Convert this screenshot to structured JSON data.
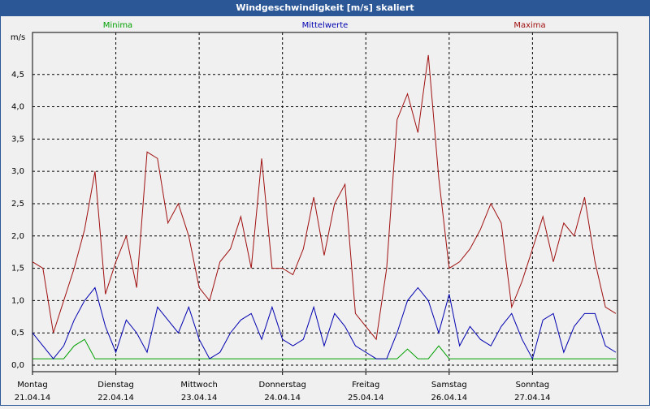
{
  "chart_data": {
    "type": "line",
    "title": "Windgeschwindigkeit [m/s] skaliert",
    "y_label": "m/s",
    "xlim": [
      0,
      7.02
    ],
    "ylim": [
      -0.1,
      5.15
    ],
    "yticks": [
      {
        "value": 0,
        "label": "0,0"
      },
      {
        "value": 0.5,
        "label": "0,5"
      },
      {
        "value": 1,
        "label": "1,0"
      },
      {
        "value": 1.5,
        "label": "1,5"
      },
      {
        "value": 2,
        "label": "2,0"
      },
      {
        "value": 2.5,
        "label": "2,5"
      },
      {
        "value": 3,
        "label": "3,0"
      },
      {
        "value": 3.5,
        "label": "3,5"
      },
      {
        "value": 4,
        "label": "4,0"
      },
      {
        "value": 4.5,
        "label": "4,5"
      }
    ],
    "xticks": [
      {
        "value": 0,
        "label": "Montag",
        "date": "21.04.14"
      },
      {
        "value": 1,
        "label": "Dienstag",
        "date": "22.04.14"
      },
      {
        "value": 2,
        "label": "Mittwoch",
        "date": "23.04.14"
      },
      {
        "value": 3,
        "label": "Donnerstag",
        "date": "24.04.14"
      },
      {
        "value": 4,
        "label": "Freitag",
        "date": "25.04.14"
      },
      {
        "value": 5,
        "label": "Samstag",
        "date": "26.04.14"
      },
      {
        "value": 6,
        "label": "Sonntag",
        "date": "27.04.14"
      }
    ],
    "grid": true,
    "x": [
      0,
      0.125,
      0.25,
      0.375,
      0.5,
      0.625,
      0.75,
      0.875,
      1,
      1.125,
      1.25,
      1.375,
      1.5,
      1.625,
      1.75,
      1.875,
      2,
      2.125,
      2.25,
      2.375,
      2.5,
      2.625,
      2.75,
      2.875,
      3,
      3.125,
      3.25,
      3.375,
      3.5,
      3.625,
      3.75,
      3.875,
      4,
      4.125,
      4.25,
      4.375,
      4.5,
      4.625,
      4.75,
      4.875,
      5,
      5.125,
      5.25,
      5.375,
      5.5,
      5.625,
      5.75,
      5.875,
      6,
      6.125,
      6.25,
      6.375,
      6.5,
      6.625,
      6.75,
      6.875,
      7
    ],
    "series": [
      {
        "name": "Minima",
        "color": "#00a000",
        "values": [
          0.1,
          0.1,
          0.1,
          0.1,
          0.3,
          0.4,
          0.1,
          0.1,
          0.1,
          0.1,
          0.1,
          0.1,
          0.1,
          0.1,
          0.1,
          0.1,
          0.1,
          0.1,
          0.1,
          0.1,
          0.1,
          0.1,
          0.1,
          0.1,
          0.1,
          0.1,
          0.1,
          0.1,
          0.1,
          0.1,
          0.1,
          0.1,
          0.1,
          0.1,
          0.1,
          0.1,
          0.25,
          0.1,
          0.1,
          0.3,
          0.1,
          0.1,
          0.1,
          0.1,
          0.1,
          0.1,
          0.1,
          0.1,
          0.1,
          0.1,
          0.1,
          0.1,
          0.1,
          0.1,
          0.1,
          0.1,
          0.1
        ]
      },
      {
        "name": "Mittelwerte",
        "color": "#0000b0",
        "values": [
          0.5,
          0.3,
          0.1,
          0.3,
          0.7,
          1.0,
          1.2,
          0.6,
          0.2,
          0.7,
          0.5,
          0.2,
          0.9,
          0.7,
          0.5,
          0.9,
          0.4,
          0.1,
          0.2,
          0.5,
          0.7,
          0.8,
          0.4,
          0.9,
          0.4,
          0.3,
          0.4,
          0.9,
          0.3,
          0.8,
          0.6,
          0.3,
          0.2,
          0.1,
          0.1,
          0.5,
          1.0,
          1.2,
          1.0,
          0.5,
          1.1,
          0.3,
          0.6,
          0.4,
          0.3,
          0.6,
          0.8,
          0.4,
          0.1,
          0.7,
          0.8,
          0.2,
          0.6,
          0.8,
          0.8,
          0.3,
          0.2
        ]
      },
      {
        "name": "Maxima",
        "color": "#a01010",
        "values": [
          1.6,
          1.5,
          0.5,
          1.0,
          1.5,
          2.1,
          3.0,
          1.1,
          1.6,
          2.0,
          1.2,
          3.3,
          3.2,
          2.2,
          2.5,
          2.0,
          1.2,
          1.0,
          1.6,
          1.8,
          2.3,
          1.5,
          3.2,
          1.5,
          1.5,
          1.4,
          1.8,
          2.6,
          1.7,
          2.5,
          2.8,
          0.8,
          0.6,
          0.4,
          1.5,
          3.8,
          4.2,
          3.6,
          4.8,
          2.9,
          1.5,
          1.6,
          1.8,
          2.1,
          2.5,
          2.2,
          0.9,
          1.3,
          1.8,
          2.3,
          1.6,
          2.2,
          2.0,
          2.6,
          1.6,
          0.9,
          0.8
        ]
      }
    ]
  }
}
